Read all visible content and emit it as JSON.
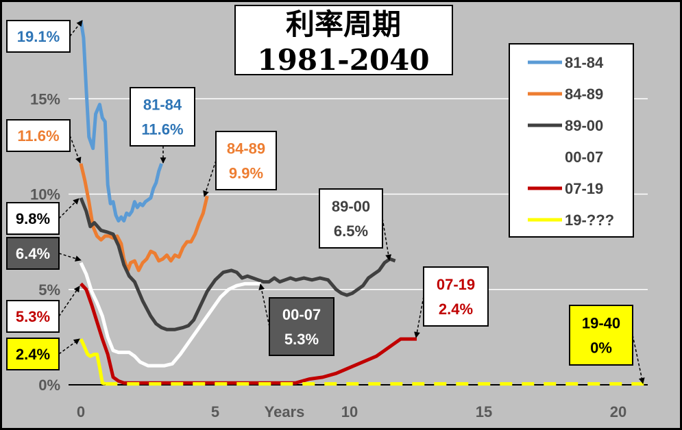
{
  "chart_data": {
    "type": "line",
    "title": "利率周期",
    "subtitle": "1981-2040",
    "xlabel": "Years",
    "ylabel": "",
    "xlim": [
      0,
      21
    ],
    "ylim": [
      0,
      20
    ],
    "x_ticks": [
      {
        "v": 0,
        "t": "0"
      },
      {
        "v": 5,
        "t": "5"
      },
      {
        "v": 10,
        "t": "10"
      },
      {
        "v": 15,
        "t": "15"
      },
      {
        "v": 20,
        "t": "20"
      }
    ],
    "y_ticks": [
      {
        "v": 0,
        "t": "0%"
      },
      {
        "v": 5,
        "t": "5%"
      },
      {
        "v": 10,
        "t": "10%"
      },
      {
        "v": 15,
        "t": "15%"
      }
    ],
    "grid": true,
    "legend_position": "right",
    "series": [
      {
        "name": "81-84",
        "color": "#5b9bd5",
        "width": 5,
        "x": [
          0,
          0.1,
          0.2,
          0.3,
          0.45,
          0.55,
          0.7,
          0.8,
          0.9,
          1.0,
          1.1,
          1.2,
          1.3,
          1.4,
          1.5,
          1.6,
          1.7,
          1.8,
          1.9,
          2.0,
          2.1,
          2.2,
          2.3,
          2.4,
          2.5,
          2.6,
          2.7,
          2.8,
          2.9,
          3.0
        ],
        "y": [
          19.1,
          18.2,
          15.5,
          13.0,
          12.4,
          14.2,
          14.7,
          14.0,
          13.8,
          10.5,
          9.5,
          9.6,
          8.9,
          8.6,
          8.8,
          8.6,
          9.0,
          8.9,
          9.1,
          9.6,
          9.3,
          9.5,
          9.4,
          9.6,
          9.7,
          9.8,
          10.3,
          10.6,
          11.2,
          11.6
        ]
      },
      {
        "name": "84-89",
        "color": "#ed7d31",
        "width": 5,
        "x": [
          0,
          0.15,
          0.3,
          0.45,
          0.6,
          0.75,
          0.9,
          1.05,
          1.2,
          1.35,
          1.5,
          1.6,
          1.75,
          1.85,
          2.0,
          2.15,
          2.3,
          2.45,
          2.6,
          2.75,
          2.9,
          3.05,
          3.2,
          3.35,
          3.5,
          3.65,
          3.8,
          3.95,
          4.1,
          4.25,
          4.4,
          4.55,
          4.7
        ],
        "y": [
          11.6,
          10.7,
          9.6,
          8.3,
          7.8,
          7.6,
          7.8,
          7.8,
          7.7,
          7.8,
          7.4,
          6.6,
          6.0,
          6.4,
          6.5,
          6.0,
          6.4,
          6.6,
          7.0,
          6.9,
          6.5,
          6.6,
          6.8,
          6.5,
          6.8,
          6.7,
          7.2,
          7.5,
          7.5,
          7.9,
          8.5,
          9.0,
          9.9
        ]
      },
      {
        "name": "89-00",
        "color": "#404040",
        "width": 5,
        "x": [
          0,
          0.2,
          0.35,
          0.5,
          0.75,
          1.0,
          1.2,
          1.4,
          1.6,
          1.8,
          2.0,
          2.3,
          2.6,
          2.8,
          3.0,
          3.2,
          3.5,
          3.8,
          4.0,
          4.2,
          4.4,
          4.7,
          5.0,
          5.3,
          5.6,
          5.8,
          6.0,
          6.2,
          6.4,
          6.6,
          6.8,
          7.0,
          7.2,
          7.4,
          7.6,
          7.8,
          8.0,
          8.3,
          8.6,
          8.9,
          9.2,
          9.5,
          9.7,
          9.9,
          10.1,
          10.3,
          10.5,
          10.7,
          10.9,
          11.1,
          11.3,
          11.5,
          11.7
        ],
        "y": [
          9.8,
          9.1,
          8.3,
          8.5,
          8.1,
          8.0,
          7.9,
          7.3,
          6.3,
          5.7,
          5.4,
          4.4,
          3.6,
          3.2,
          3.0,
          2.9,
          2.9,
          3.0,
          3.1,
          3.4,
          4.0,
          4.9,
          5.5,
          5.9,
          6.0,
          5.9,
          5.6,
          5.7,
          5.6,
          5.5,
          5.4,
          5.4,
          5.6,
          5.4,
          5.5,
          5.6,
          5.5,
          5.6,
          5.5,
          5.6,
          5.5,
          5.0,
          4.8,
          4.7,
          4.8,
          5.0,
          5.2,
          5.6,
          5.8,
          6.0,
          6.4,
          6.6,
          6.5
        ]
      },
      {
        "name": "00-07",
        "color": "#ffffff",
        "width": 5,
        "x": [
          0,
          0.2,
          0.4,
          0.6,
          0.8,
          1.0,
          1.2,
          1.4,
          1.6,
          1.8,
          2.0,
          2.2,
          2.5,
          2.8,
          3.1,
          3.4,
          3.7,
          4.0,
          4.3,
          4.6,
          4.9,
          5.2,
          5.5,
          5.8,
          6.1,
          6.4,
          6.7
        ],
        "y": [
          6.4,
          5.8,
          4.9,
          4.3,
          3.6,
          2.5,
          1.8,
          1.7,
          1.7,
          1.7,
          1.5,
          1.2,
          1.0,
          1.0,
          1.0,
          1.1,
          1.6,
          2.2,
          2.8,
          3.4,
          4.0,
          4.6,
          5.0,
          5.2,
          5.3,
          5.3,
          5.3
        ]
      },
      {
        "name": "07-19",
        "color": "#c00000",
        "width": 5,
        "x": [
          0,
          0.2,
          0.4,
          0.6,
          0.8,
          1.0,
          1.2,
          1.4,
          1.6,
          2.0,
          3.0,
          4.0,
          5.0,
          6.0,
          7.0,
          8.0,
          8.5,
          9.0,
          9.5,
          10.0,
          10.5,
          11.0,
          11.3,
          11.6,
          11.9,
          12.2,
          12.5
        ],
        "y": [
          5.3,
          5.0,
          4.2,
          3.3,
          2.4,
          1.6,
          0.4,
          0.2,
          0.1,
          0.1,
          0.1,
          0.1,
          0.1,
          0.1,
          0.1,
          0.1,
          0.3,
          0.4,
          0.6,
          0.9,
          1.2,
          1.5,
          1.8,
          2.1,
          2.4,
          2.4,
          2.4
        ]
      },
      {
        "name": "19-???",
        "color": "#ffff00",
        "width": 5,
        "dashed_tail": true,
        "x": [
          0,
          0.1,
          0.25,
          0.35,
          0.5,
          0.6,
          0.7,
          0.8,
          0.9,
          1.0,
          21
        ],
        "y": [
          2.4,
          2.1,
          1.6,
          1.5,
          1.6,
          1.6,
          0.9,
          0.1,
          0.05,
          0.05,
          0.05
        ],
        "solid_until": 0.9
      }
    ],
    "annotations": [
      {
        "text": [
          "19.1%"
        ],
        "color": "#2e75b6",
        "bg": "#ffffff",
        "border": "#000000",
        "x": 0,
        "y": 19.1
      },
      {
        "text": [
          "11.6%"
        ],
        "color": "#ed7d31",
        "bg": "#ffffff",
        "border": "#000000",
        "x": 0,
        "y": 11.6
      },
      {
        "text": [
          "9.8%"
        ],
        "color": "#000000",
        "bg": "#ffffff",
        "border": "#000000",
        "x": 0,
        "y": 9.8
      },
      {
        "text": [
          "6.4%"
        ],
        "color": "#ffffff",
        "bg": "#595959",
        "border": "#000000",
        "x": 0,
        "y": 6.4
      },
      {
        "text": [
          "5.3%"
        ],
        "color": "#c00000",
        "bg": "#ffffff",
        "border": "#000000",
        "x": 0,
        "y": 5.3
      },
      {
        "text": [
          "2.4%"
        ],
        "color": "#000000",
        "bg": "#ffff00",
        "border": "#000000",
        "x": 0,
        "y": 2.4
      },
      {
        "text": [
          "81-84",
          "11.6%"
        ],
        "color": "#2e75b6",
        "bg": "#ffffff",
        "border": "#000000",
        "x": 3.0,
        "y": 11.6
      },
      {
        "text": [
          "84-89",
          "9.9%"
        ],
        "color": "#ed7d31",
        "bg": "#ffffff",
        "border": "#000000",
        "x": 4.7,
        "y": 9.9
      },
      {
        "text": [
          "89-00",
          "6.5%"
        ],
        "color": "#404040",
        "bg": "#ffffff",
        "border": "#000000",
        "x": 11.7,
        "y": 6.5
      },
      {
        "text": [
          "00-07",
          "5.3%"
        ],
        "color": "#ffffff",
        "bg": "#595959",
        "border": "#000000",
        "x": 6.7,
        "y": 5.3
      },
      {
        "text": [
          "07-19",
          "2.4%"
        ],
        "color": "#c00000",
        "bg": "#ffffff",
        "border": "#000000",
        "x": 12.5,
        "y": 2.4
      },
      {
        "text": [
          "19-40",
          "0%"
        ],
        "color": "#000000",
        "bg": "#ffff00",
        "border": "#000000",
        "x": 21,
        "y": 0
      }
    ]
  }
}
